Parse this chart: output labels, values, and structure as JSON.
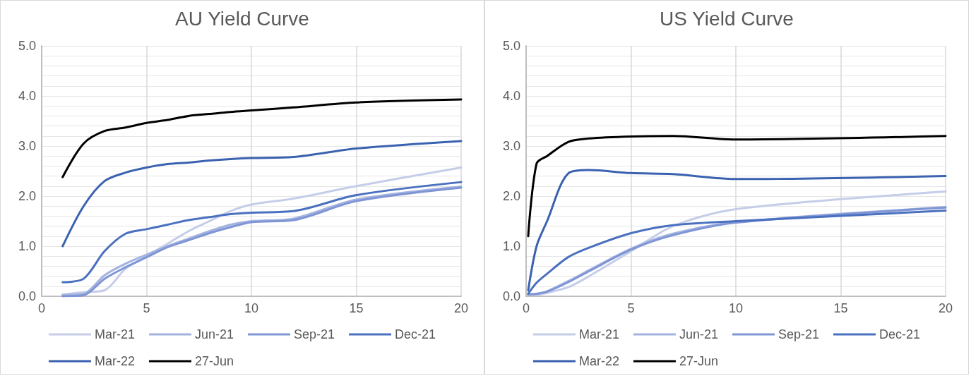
{
  "chart_data": [
    {
      "type": "line",
      "title": "AU Yield Curve",
      "xlim": [
        0,
        20
      ],
      "xticks": [
        0,
        5,
        10,
        15,
        20
      ],
      "ylim": [
        0,
        5
      ],
      "yticks": [
        {
          "value": 0,
          "label": "0.0"
        },
        {
          "value": 0.2,
          "label": null
        },
        {
          "value": 0.4,
          "label": null
        },
        {
          "value": 0.6,
          "label": null
        },
        {
          "value": 0.8,
          "label": null
        },
        {
          "value": 1,
          "label": "1.0"
        },
        {
          "value": 1.2,
          "label": null
        },
        {
          "value": 1.4,
          "label": null
        },
        {
          "value": 1.6,
          "label": null
        },
        {
          "value": 1.8,
          "label": null
        },
        {
          "value": 2,
          "label": "2.0"
        },
        {
          "value": 2.2,
          "label": null
        },
        {
          "value": 2.4,
          "label": null
        },
        {
          "value": 2.6,
          "label": null
        },
        {
          "value": 2.8,
          "label": null
        },
        {
          "value": 3,
          "label": "3.0"
        },
        {
          "value": 3.2,
          "label": null
        },
        {
          "value": 3.4,
          "label": null
        },
        {
          "value": 3.6,
          "label": null
        },
        {
          "value": 3.8,
          "label": null
        },
        {
          "value": 4,
          "label": "4.0"
        },
        {
          "value": 4.2,
          "label": null
        },
        {
          "value": 4.4,
          "label": null
        },
        {
          "value": 4.6,
          "label": null
        },
        {
          "value": 4.8,
          "label": null
        },
        {
          "value": 5,
          "label": "5.0"
        }
      ],
      "grid": true,
      "legend": "bottom",
      "marker": "none",
      "line_style": "solid",
      "x": [
        1,
        2,
        3,
        4,
        5,
        6,
        7,
        8,
        9,
        10,
        12,
        15,
        20
      ],
      "series": [
        {
          "name": "Mar-21",
          "color": "#c5cde8",
          "values": [
            0.03,
            0.08,
            0.12,
            0.55,
            0.8,
            1.05,
            1.3,
            1.5,
            1.7,
            1.83,
            1.95,
            2.2,
            2.57
          ]
        },
        {
          "name": "Jun-21",
          "color": "#a3b3e0",
          "values": [
            0.03,
            0.05,
            0.42,
            0.65,
            0.83,
            1.0,
            1.15,
            1.3,
            1.43,
            1.5,
            1.55,
            1.93,
            2.19
          ]
        },
        {
          "name": "Sep-21",
          "color": "#7f95d5",
          "values": [
            0.0,
            0.02,
            0.35,
            0.58,
            0.78,
            0.98,
            1.12,
            1.26,
            1.38,
            1.48,
            1.52,
            1.9,
            2.17
          ]
        },
        {
          "name": "Dec-21",
          "color": "#4a70c0",
          "values": [
            0.28,
            0.35,
            0.9,
            1.25,
            1.34,
            1.43,
            1.52,
            1.58,
            1.64,
            1.67,
            1.7,
            2.02,
            2.28
          ]
        },
        {
          "name": "Mar-22",
          "color": "#3a62b0",
          "values": [
            1.0,
            1.8,
            2.3,
            2.47,
            2.57,
            2.64,
            2.67,
            2.71,
            2.74,
            2.76,
            2.78,
            2.95,
            3.1
          ]
        },
        {
          "name": "27-Jun",
          "color": "#000000",
          "values": [
            2.38,
            3.05,
            3.3,
            3.37,
            3.46,
            3.52,
            3.6,
            3.64,
            3.68,
            3.71,
            3.77,
            3.87,
            3.93
          ]
        }
      ]
    },
    {
      "type": "line",
      "title": "US Yield Curve",
      "xlim": [
        0,
        20
      ],
      "xticks": [
        0,
        5,
        10,
        15,
        20
      ],
      "ylim": [
        0,
        5
      ],
      "yticks": [
        {
          "value": 0,
          "label": "0.0"
        },
        {
          "value": 0.2,
          "label": null
        },
        {
          "value": 0.4,
          "label": null
        },
        {
          "value": 0.6,
          "label": null
        },
        {
          "value": 0.8,
          "label": null
        },
        {
          "value": 1,
          "label": "1.0"
        },
        {
          "value": 1.2,
          "label": null
        },
        {
          "value": 1.4,
          "label": null
        },
        {
          "value": 1.6,
          "label": null
        },
        {
          "value": 1.8,
          "label": null
        },
        {
          "value": 2,
          "label": "2.0"
        },
        {
          "value": 2.2,
          "label": null
        },
        {
          "value": 2.4,
          "label": null
        },
        {
          "value": 2.6,
          "label": null
        },
        {
          "value": 2.8,
          "label": null
        },
        {
          "value": 3,
          "label": "3.0"
        },
        {
          "value": 3.2,
          "label": null
        },
        {
          "value": 3.4,
          "label": null
        },
        {
          "value": 3.6,
          "label": null
        },
        {
          "value": 3.8,
          "label": null
        },
        {
          "value": 4,
          "label": "4.0"
        },
        {
          "value": 4.2,
          "label": null
        },
        {
          "value": 4.4,
          "label": null
        },
        {
          "value": 4.6,
          "label": null
        },
        {
          "value": 4.8,
          "label": null
        },
        {
          "value": 5,
          "label": "5.0"
        }
      ],
      "grid": true,
      "legend": "bottom",
      "marker": "none",
      "line_style": "solid",
      "x": [
        0.1,
        0.5,
        1,
        2,
        3,
        5,
        7,
        10,
        20
      ],
      "series": [
        {
          "name": "Mar-21",
          "color": "#c5cde8",
          "values": [
            0.03,
            0.03,
            0.07,
            0.18,
            0.4,
            0.9,
            1.4,
            1.74,
            2.09
          ]
        },
        {
          "name": "Jun-21",
          "color": "#a3b3e0",
          "values": [
            0.04,
            0.05,
            0.1,
            0.3,
            0.52,
            0.95,
            1.25,
            1.48,
            1.78
          ]
        },
        {
          "name": "Sep-21",
          "color": "#7f95d5",
          "values": [
            0.04,
            0.05,
            0.09,
            0.28,
            0.5,
            0.93,
            1.22,
            1.47,
            1.77
          ]
        },
        {
          "name": "Dec-21",
          "color": "#4a70c0",
          "values": [
            0.05,
            0.27,
            0.45,
            0.78,
            0.97,
            1.26,
            1.42,
            1.5,
            1.71
          ]
        },
        {
          "name": "Mar-22",
          "color": "#3a62b0",
          "values": [
            0.12,
            1.0,
            1.5,
            2.45,
            2.52,
            2.46,
            2.44,
            2.34,
            2.4
          ]
        },
        {
          "name": "27-Jun",
          "color": "#000000",
          "values": [
            1.2,
            2.65,
            2.8,
            3.08,
            3.15,
            3.19,
            3.2,
            3.13,
            3.2
          ]
        }
      ]
    }
  ]
}
